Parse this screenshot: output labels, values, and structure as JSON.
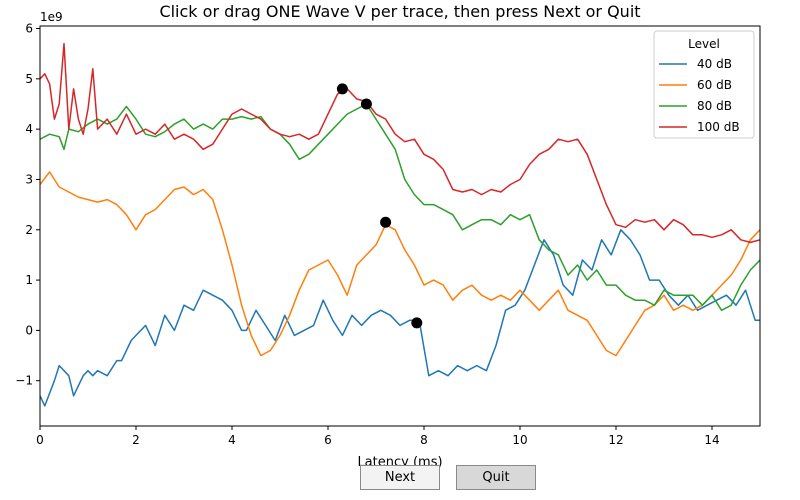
{
  "buttons": {
    "next_label": "Next",
    "quit_label": "Quit"
  },
  "chart_data": {
    "type": "line",
    "title": "Click or drag ONE Wave V per trace, then press Next or Quit",
    "xlabel": "Latency (ms)",
    "ylabel": "",
    "y_multiplier_label": "1e9",
    "xlim": [
      0,
      15
    ],
    "ylim": [
      -1.9,
      6.05
    ],
    "xticks": [
      0,
      2,
      4,
      6,
      8,
      10,
      12,
      14
    ],
    "yticks": [
      -1,
      0,
      1,
      2,
      3,
      4,
      5,
      6
    ],
    "grid": false,
    "legend": {
      "title": "Level",
      "placement": "top-right"
    },
    "series": [
      {
        "name": "40 dB",
        "color": "#1f77b4",
        "x": [
          0,
          0.1,
          0.3,
          0.4,
          0.6,
          0.7,
          0.9,
          1.0,
          1.1,
          1.2,
          1.4,
          1.6,
          1.7,
          1.9,
          2.0,
          2.2,
          2.4,
          2.6,
          2.8,
          3.0,
          3.2,
          3.4,
          3.6,
          3.8,
          4.0,
          4.2,
          4.3,
          4.5,
          4.7,
          4.9,
          5.1,
          5.3,
          5.5,
          5.7,
          5.9,
          6.1,
          6.3,
          6.5,
          6.7,
          6.9,
          7.1,
          7.3,
          7.5,
          7.7,
          7.9,
          8.1,
          8.3,
          8.5,
          8.7,
          8.9,
          9.1,
          9.3,
          9.5,
          9.7,
          9.9,
          10.1,
          10.3,
          10.5,
          10.7,
          10.9,
          11.1,
          11.3,
          11.5,
          11.7,
          11.9,
          12.1,
          12.3,
          12.5,
          12.7,
          12.9,
          13.1,
          13.3,
          13.5,
          13.7,
          13.9,
          14.1,
          14.3,
          14.5,
          14.7,
          14.9,
          15.0
        ],
        "y": [
          -1.3,
          -1.5,
          -1.0,
          -0.7,
          -0.9,
          -1.3,
          -0.9,
          -0.8,
          -0.9,
          -0.8,
          -0.9,
          -0.6,
          -0.6,
          -0.2,
          -0.1,
          0.1,
          -0.3,
          0.3,
          0.0,
          0.5,
          0.4,
          0.8,
          0.7,
          0.6,
          0.4,
          0.0,
          0.0,
          0.4,
          0.1,
          -0.2,
          0.3,
          -0.1,
          0.0,
          0.1,
          0.6,
          0.2,
          -0.1,
          0.3,
          0.1,
          0.3,
          0.4,
          0.3,
          0.1,
          0.2,
          0.2,
          -0.9,
          -0.8,
          -0.9,
          -0.7,
          -0.8,
          -0.7,
          -0.8,
          -0.3,
          0.4,
          0.5,
          0.8,
          1.3,
          1.8,
          1.5,
          0.9,
          0.7,
          1.4,
          1.2,
          1.8,
          1.5,
          2.0,
          1.8,
          1.5,
          1.0,
          1.0,
          0.7,
          0.5,
          0.7,
          0.4,
          0.5,
          0.6,
          0.7,
          0.5,
          0.8,
          0.2,
          0.2
        ]
      },
      {
        "name": "60 dB",
        "color": "#ff7f0e",
        "x": [
          0,
          0.2,
          0.4,
          0.6,
          0.8,
          1.0,
          1.2,
          1.4,
          1.6,
          1.8,
          2.0,
          2.2,
          2.4,
          2.6,
          2.8,
          3.0,
          3.2,
          3.4,
          3.6,
          3.8,
          4.0,
          4.2,
          4.4,
          4.6,
          4.8,
          5.0,
          5.2,
          5.4,
          5.6,
          5.8,
          6.0,
          6.2,
          6.4,
          6.6,
          6.8,
          7.0,
          7.2,
          7.4,
          7.6,
          7.8,
          8.0,
          8.2,
          8.4,
          8.6,
          8.8,
          9.0,
          9.2,
          9.4,
          9.6,
          9.8,
          10.0,
          10.2,
          10.4,
          10.6,
          10.8,
          11.0,
          11.2,
          11.4,
          11.6,
          11.8,
          12.0,
          12.2,
          12.4,
          12.6,
          12.8,
          13.0,
          13.2,
          13.4,
          13.6,
          13.8,
          14.0,
          14.2,
          14.4,
          14.6,
          14.8,
          15.0
        ],
        "y": [
          2.9,
          3.15,
          2.85,
          2.75,
          2.65,
          2.6,
          2.55,
          2.6,
          2.5,
          2.3,
          2.0,
          2.3,
          2.4,
          2.6,
          2.8,
          2.85,
          2.7,
          2.8,
          2.6,
          2.0,
          1.3,
          0.5,
          -0.1,
          -0.5,
          -0.4,
          -0.1,
          0.3,
          0.8,
          1.2,
          1.3,
          1.4,
          1.1,
          0.7,
          1.3,
          1.5,
          1.7,
          2.1,
          2.0,
          1.6,
          1.3,
          0.9,
          1.0,
          0.9,
          0.6,
          0.8,
          0.9,
          0.7,
          0.6,
          0.7,
          0.6,
          0.8,
          0.6,
          0.4,
          0.6,
          0.8,
          0.4,
          0.3,
          0.2,
          -0.1,
          -0.4,
          -0.5,
          -0.2,
          0.1,
          0.4,
          0.5,
          0.7,
          0.4,
          0.5,
          0.4,
          0.5,
          0.7,
          0.9,
          1.1,
          1.4,
          1.8,
          2.0
        ]
      },
      {
        "name": "80 dB",
        "color": "#2ca02c",
        "x": [
          0,
          0.2,
          0.4,
          0.5,
          0.6,
          0.8,
          1.0,
          1.2,
          1.4,
          1.6,
          1.8,
          2.0,
          2.2,
          2.4,
          2.6,
          2.8,
          3.0,
          3.2,
          3.4,
          3.6,
          3.8,
          4.0,
          4.2,
          4.4,
          4.6,
          4.8,
          5.0,
          5.2,
          5.4,
          5.6,
          5.8,
          6.0,
          6.2,
          6.4,
          6.6,
          6.8,
          7.0,
          7.2,
          7.4,
          7.6,
          7.8,
          8.0,
          8.2,
          8.4,
          8.6,
          8.8,
          9.0,
          9.2,
          9.4,
          9.6,
          9.8,
          10.0,
          10.2,
          10.4,
          10.6,
          10.8,
          11.0,
          11.2,
          11.4,
          11.6,
          11.8,
          12.0,
          12.2,
          12.4,
          12.6,
          12.8,
          13.0,
          13.2,
          13.4,
          13.6,
          13.8,
          14.0,
          14.2,
          14.4,
          14.6,
          14.8,
          15.0
        ],
        "y": [
          3.8,
          3.9,
          3.85,
          3.6,
          4.0,
          3.95,
          4.1,
          4.2,
          4.1,
          4.2,
          4.45,
          4.2,
          3.9,
          3.85,
          3.95,
          4.1,
          4.2,
          4.0,
          4.1,
          4.0,
          4.2,
          4.2,
          4.25,
          4.2,
          4.25,
          4.0,
          3.9,
          3.7,
          3.4,
          3.5,
          3.7,
          3.9,
          4.1,
          4.3,
          4.4,
          4.5,
          4.2,
          3.9,
          3.6,
          3.0,
          2.7,
          2.5,
          2.5,
          2.4,
          2.3,
          2.0,
          2.1,
          2.2,
          2.2,
          2.1,
          2.3,
          2.2,
          2.3,
          1.8,
          1.6,
          1.5,
          1.1,
          1.3,
          1.0,
          1.2,
          0.9,
          0.9,
          0.7,
          0.6,
          0.6,
          0.5,
          0.8,
          0.7,
          0.7,
          0.7,
          0.5,
          0.7,
          0.4,
          0.5,
          0.9,
          1.2,
          1.4
        ]
      },
      {
        "name": "100 dB",
        "color": "#d62728",
        "x": [
          0,
          0.1,
          0.2,
          0.3,
          0.4,
          0.5,
          0.6,
          0.7,
          0.8,
          0.9,
          1.0,
          1.1,
          1.2,
          1.4,
          1.6,
          1.8,
          2.0,
          2.2,
          2.4,
          2.6,
          2.8,
          3.0,
          3.2,
          3.4,
          3.6,
          3.8,
          4.0,
          4.2,
          4.4,
          4.6,
          4.8,
          5.0,
          5.2,
          5.4,
          5.6,
          5.8,
          6.0,
          6.2,
          6.4,
          6.6,
          6.8,
          7.0,
          7.2,
          7.4,
          7.6,
          7.8,
          8.0,
          8.2,
          8.4,
          8.6,
          8.8,
          9.0,
          9.2,
          9.4,
          9.6,
          9.8,
          10.0,
          10.2,
          10.4,
          10.6,
          10.8,
          11.0,
          11.2,
          11.4,
          11.6,
          11.8,
          12.0,
          12.2,
          12.4,
          12.6,
          12.8,
          13.0,
          13.2,
          13.4,
          13.6,
          13.8,
          14.0,
          14.2,
          14.4,
          14.6,
          14.8,
          15.0
        ],
        "y": [
          5.0,
          5.1,
          4.9,
          4.2,
          4.5,
          5.7,
          4.0,
          4.8,
          4.2,
          3.9,
          4.4,
          5.2,
          4.0,
          4.2,
          3.9,
          4.3,
          3.9,
          4.0,
          3.9,
          4.1,
          3.8,
          3.9,
          3.8,
          3.6,
          3.7,
          4.0,
          4.3,
          4.4,
          4.3,
          4.2,
          4.0,
          3.9,
          3.85,
          3.9,
          3.8,
          3.9,
          4.3,
          4.7,
          4.8,
          4.6,
          4.55,
          4.3,
          4.2,
          3.9,
          3.75,
          3.8,
          3.5,
          3.4,
          3.2,
          2.8,
          2.75,
          2.8,
          2.7,
          2.8,
          2.75,
          2.9,
          3.0,
          3.3,
          3.5,
          3.6,
          3.8,
          3.75,
          3.8,
          3.5,
          3.0,
          2.5,
          2.1,
          2.05,
          2.2,
          2.15,
          2.2,
          2.0,
          2.2,
          2.1,
          1.9,
          1.9,
          1.85,
          1.9,
          2.0,
          1.8,
          1.75,
          1.8
        ]
      }
    ],
    "markers": [
      {
        "x": 7.85,
        "y": 0.15
      },
      {
        "x": 7.2,
        "y": 2.15
      },
      {
        "x": 6.8,
        "y": 4.5
      },
      {
        "x": 6.3,
        "y": 4.8
      }
    ]
  }
}
